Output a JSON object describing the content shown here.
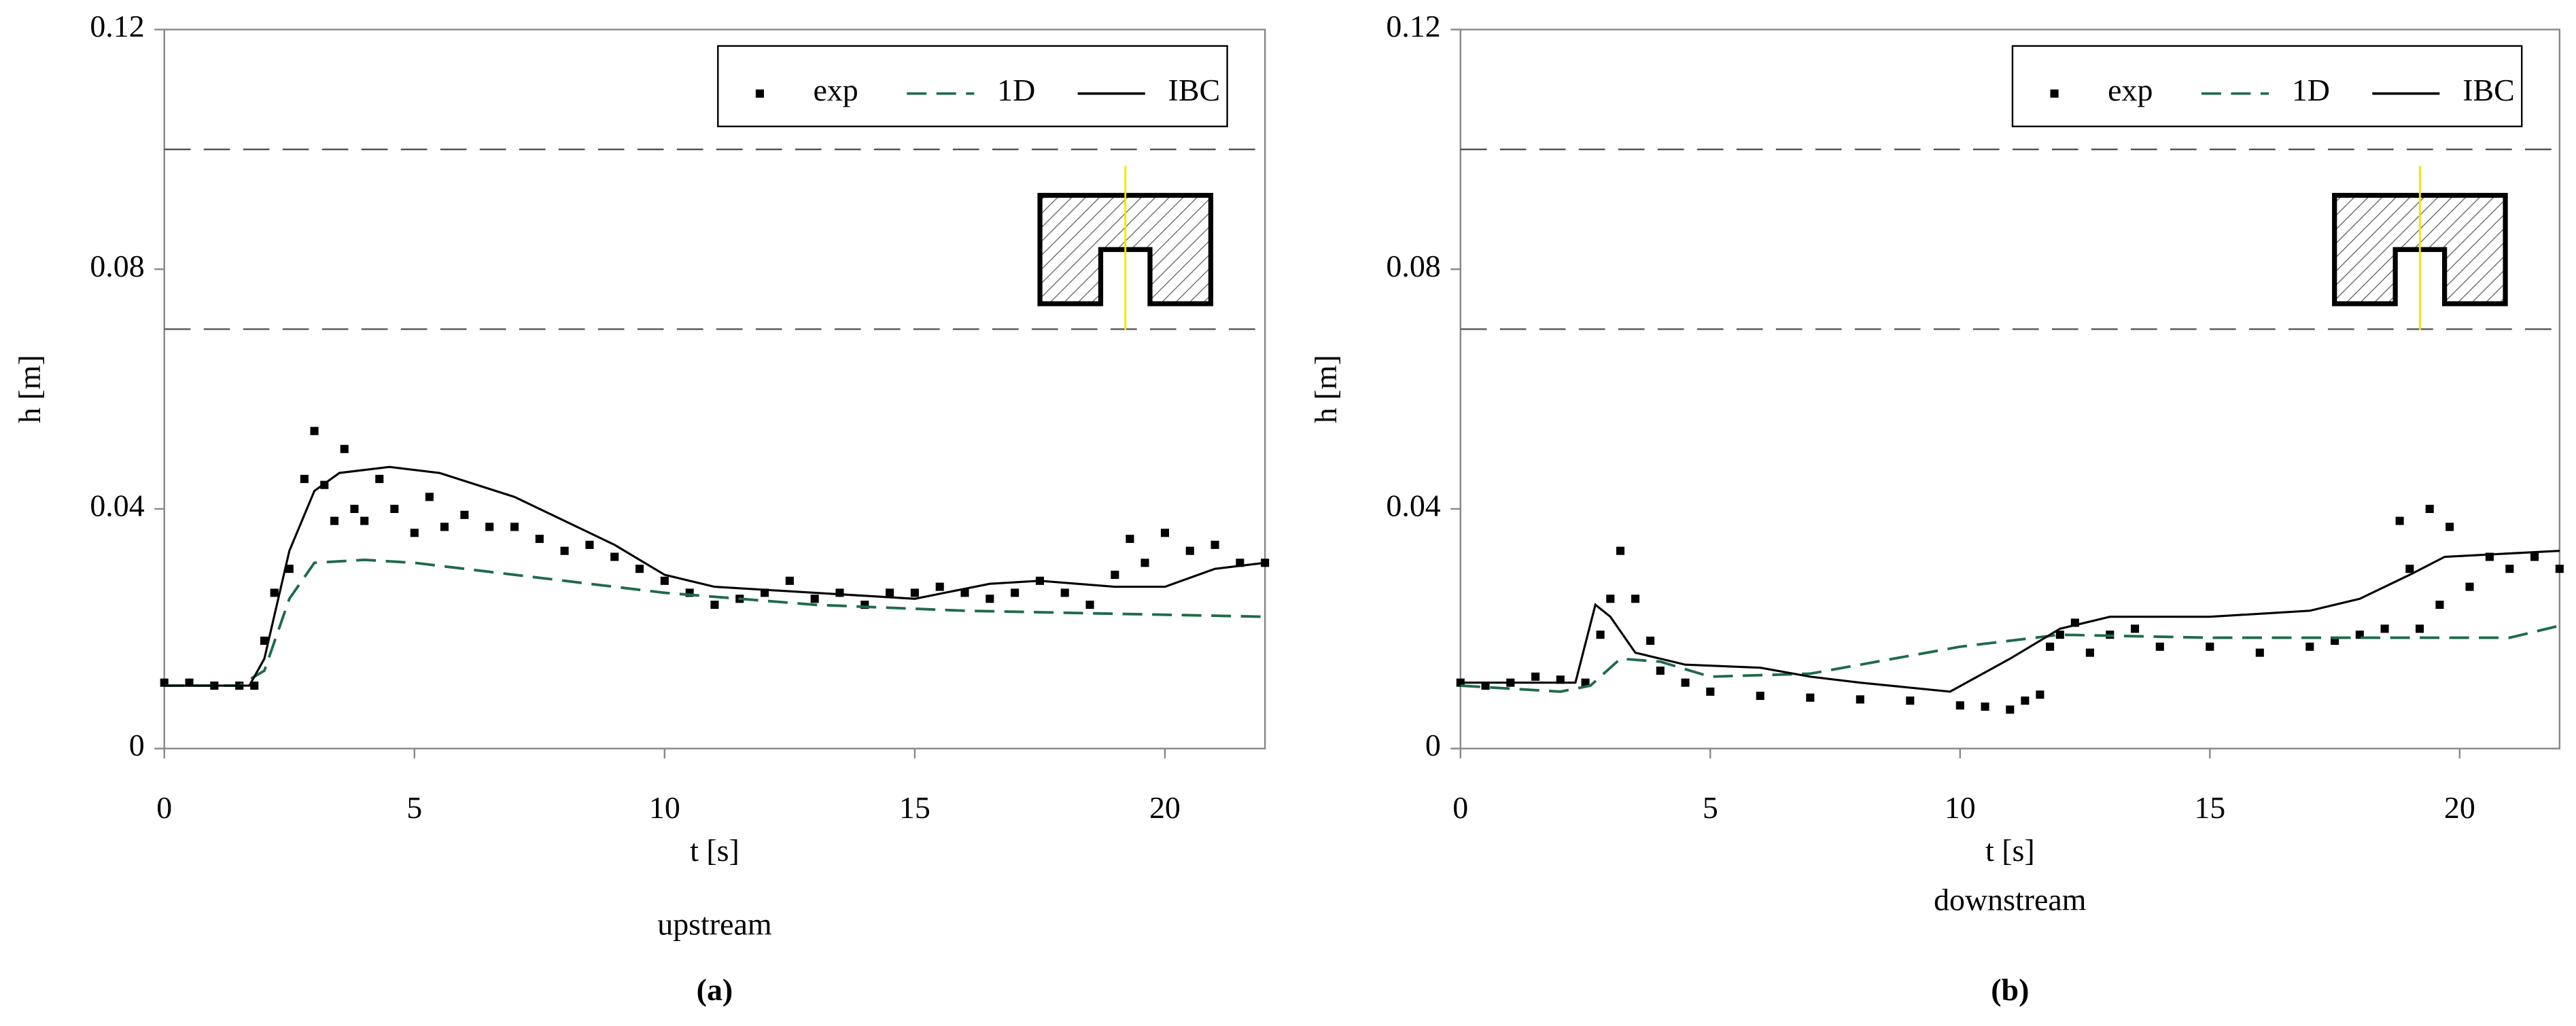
{
  "chart_data": [
    {
      "type": "line",
      "panel_label": "(a)",
      "caption": "upstream",
      "xlabel": "t [s]",
      "ylabel": "h [m]",
      "xlim": [
        0,
        22
      ],
      "xticks": [
        0,
        5,
        10,
        15,
        20
      ],
      "ylim": [
        0,
        0.12
      ],
      "yticks": [
        0,
        0.04,
        0.08,
        0.12
      ],
      "hlines": [
        0.07,
        0.1
      ],
      "hline_color": "#555555",
      "legend": "upper-right",
      "series": [
        {
          "name": "exp",
          "color": "#000000",
          "style": "scatter",
          "x": [
            0,
            0.5,
            1,
            1.5,
            1.8,
            2.0,
            2.2,
            2.5,
            2.8,
            3.0,
            3.2,
            3.4,
            3.6,
            3.8,
            4.0,
            4.3,
            4.6,
            5.0,
            5.3,
            5.6,
            6.0,
            6.5,
            7.0,
            7.5,
            8.0,
            8.5,
            9.0,
            9.5,
            10.0,
            10.5,
            11.0,
            11.5,
            12.0,
            12.5,
            13.0,
            13.5,
            14.0,
            14.5,
            15.0,
            15.5,
            16.0,
            16.5,
            17.0,
            17.5,
            18.0,
            18.5,
            19.0,
            19.3,
            19.6,
            20.0,
            20.5,
            21.0,
            21.5,
            22.0
          ],
          "values": [
            0.011,
            0.011,
            0.0105,
            0.0105,
            0.0105,
            0.018,
            0.026,
            0.03,
            0.045,
            0.053,
            0.044,
            0.038,
            0.05,
            0.04,
            0.038,
            0.045,
            0.04,
            0.036,
            0.042,
            0.037,
            0.039,
            0.037,
            0.037,
            0.035,
            0.033,
            0.034,
            0.032,
            0.03,
            0.028,
            0.026,
            0.024,
            0.025,
            0.026,
            0.028,
            0.025,
            0.026,
            0.024,
            0.026,
            0.026,
            0.027,
            0.026,
            0.025,
            0.026,
            0.028,
            0.026,
            0.024,
            0.029,
            0.035,
            0.031,
            0.036,
            0.033,
            0.034,
            0.031,
            0.031
          ]
        },
        {
          "name": "1D",
          "color": "#1e6b4a",
          "style": "dashed",
          "x": [
            0,
            1.5,
            2,
            2.5,
            3,
            4,
            5,
            7,
            10,
            13,
            16,
            19,
            22
          ],
          "values": [
            0.0105,
            0.0105,
            0.013,
            0.025,
            0.031,
            0.0315,
            0.031,
            0.029,
            0.026,
            0.024,
            0.023,
            0.0225,
            0.022
          ]
        },
        {
          "name": "IBC",
          "color": "#000000",
          "style": "solid",
          "x": [
            0,
            1.7,
            2,
            2.5,
            3,
            3.5,
            4.5,
            5.5,
            7,
            9,
            10,
            11,
            13,
            15,
            16.5,
            17.5,
            19,
            20,
            21,
            22
          ],
          "values": [
            0.0105,
            0.0105,
            0.015,
            0.033,
            0.043,
            0.046,
            0.047,
            0.046,
            0.042,
            0.034,
            0.029,
            0.027,
            0.026,
            0.025,
            0.0275,
            0.028,
            0.027,
            0.027,
            0.03,
            0.031
          ]
        }
      ]
    },
    {
      "type": "line",
      "panel_label": "(b)",
      "caption": "downstream",
      "xlabel": "t [s]",
      "ylabel": "h [m]",
      "xlim": [
        0,
        22
      ],
      "xticks": [
        0,
        5,
        10,
        15,
        20
      ],
      "ylim": [
        0,
        0.12
      ],
      "yticks": [
        0,
        0.04,
        0.08,
        0.12
      ],
      "hlines": [
        0.07,
        0.1
      ],
      "hline_color": "#555555",
      "legend": "upper-right",
      "series": [
        {
          "name": "exp",
          "color": "#000000",
          "style": "scatter",
          "x": [
            0,
            0.5,
            1,
            1.5,
            2,
            2.5,
            2.8,
            3.0,
            3.2,
            3.5,
            3.8,
            4.0,
            4.5,
            5,
            6,
            7,
            8,
            9,
            10,
            10.5,
            11,
            11.3,
            11.6,
            11.8,
            12,
            12.3,
            12.6,
            13,
            13.5,
            14,
            15,
            16,
            17,
            17.5,
            18,
            18.5,
            18.8,
            19,
            19.2,
            19.4,
            19.6,
            19.8,
            20.2,
            20.6,
            21,
            21.5,
            22
          ],
          "values": [
            0.011,
            0.0105,
            0.011,
            0.012,
            0.0115,
            0.011,
            0.019,
            0.025,
            0.033,
            0.025,
            0.018,
            0.013,
            0.011,
            0.0095,
            0.0088,
            0.0085,
            0.0082,
            0.008,
            0.0072,
            0.007,
            0.0065,
            0.008,
            0.009,
            0.017,
            0.019,
            0.021,
            0.016,
            0.019,
            0.02,
            0.017,
            0.017,
            0.016,
            0.017,
            0.018,
            0.019,
            0.02,
            0.038,
            0.03,
            0.02,
            0.04,
            0.024,
            0.037,
            0.027,
            0.032,
            0.03,
            0.032,
            0.03
          ]
        },
        {
          "name": "1D",
          "color": "#1e6b4a",
          "style": "dashed",
          "x": [
            0,
            1,
            2,
            2.6,
            3.2,
            4,
            5,
            7,
            8,
            10,
            12,
            15,
            18,
            21,
            22
          ],
          "values": [
            0.0105,
            0.01,
            0.0095,
            0.0105,
            0.015,
            0.0145,
            0.012,
            0.0125,
            0.014,
            0.017,
            0.019,
            0.0185,
            0.0185,
            0.0185,
            0.0205
          ]
        },
        {
          "name": "IBC",
          "color": "#000000",
          "style": "solid",
          "x": [
            0,
            2.3,
            2.7,
            3.0,
            3.5,
            4.5,
            6,
            7,
            8,
            9.8,
            11,
            12,
            13,
            15,
            17,
            18,
            19,
            19.7,
            22
          ],
          "values": [
            0.011,
            0.011,
            0.024,
            0.022,
            0.016,
            0.014,
            0.0135,
            0.012,
            0.011,
            0.0095,
            0.015,
            0.02,
            0.022,
            0.022,
            0.023,
            0.025,
            0.029,
            0.032,
            0.033
          ]
        }
      ]
    }
  ]
}
